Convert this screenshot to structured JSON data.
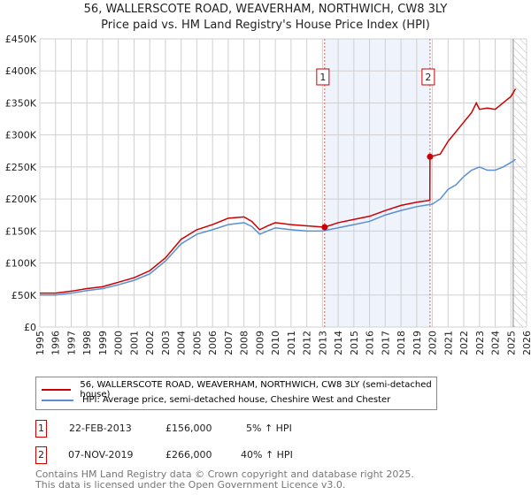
{
  "title": "56, WALLERSCOTE ROAD, WEAVERHAM, NORTHWICH, CW8 3LY",
  "subtitle": "Price paid vs. HM Land Registry's House Price Index (HPI)",
  "chart_data": {
    "type": "line",
    "title": "56, WALLERSCOTE ROAD, WEAVERHAM, NORTHWICH, CW8 3LY",
    "xlim": [
      1995,
      2026
    ],
    "ylim": [
      0,
      450000
    ],
    "yticks": [
      0,
      50000,
      100000,
      150000,
      200000,
      250000,
      300000,
      350000,
      400000,
      450000
    ],
    "ytick_labels": [
      "£0",
      "£50K",
      "£100K",
      "£150K",
      "£200K",
      "£250K",
      "£300K",
      "£350K",
      "£400K",
      "£450K"
    ],
    "xticks": [
      "1995",
      "1996",
      "1997",
      "1998",
      "1999",
      "2000",
      "2001",
      "2002",
      "2003",
      "2004",
      "2005",
      "2006",
      "2007",
      "2008",
      "2009",
      "2010",
      "2011",
      "2012",
      "2013",
      "2014",
      "2015",
      "2016",
      "2017",
      "2018",
      "2019",
      "2020",
      "2021",
      "2022",
      "2023",
      "2024",
      "2025",
      "2026"
    ],
    "grid": true,
    "series": [
      {
        "name": "56, WALLERSCOTE ROAD, WEAVERHAM, NORTHWICH, CW8 3LY (semi-detached house)",
        "color": "#cc0000",
        "x": [
          1995,
          1996,
          1997,
          1998,
          1999,
          2000,
          2001,
          2002,
          2003,
          2004,
          2005,
          2006,
          2007,
          2008,
          2008.5,
          2009,
          2009.5,
          2010,
          2011,
          2012,
          2013.14,
          2014,
          2015,
          2016,
          2017,
          2018,
          2019,
          2019.84,
          2019.85,
          2020.5,
          2021,
          2021.5,
          2022,
          2022.5,
          2022.8,
          2023,
          2023.5,
          2024,
          2024.5,
          2025,
          2025.3
        ],
        "y": [
          53000,
          53000,
          56000,
          60000,
          63000,
          70000,
          77000,
          88000,
          108000,
          137000,
          152000,
          160000,
          170000,
          172000,
          165000,
          152000,
          158000,
          163000,
          160000,
          158000,
          156000,
          163000,
          168000,
          173000,
          182000,
          190000,
          195000,
          198000,
          266000,
          270000,
          290000,
          305000,
          320000,
          335000,
          350000,
          340000,
          342000,
          340000,
          350000,
          360000,
          372000
        ]
      },
      {
        "name": "HPI: Average price, semi-detached house, Cheshire West and Chester",
        "color": "#5b8fd4",
        "x": [
          1995,
          1996,
          1997,
          1998,
          1999,
          2000,
          2001,
          2002,
          2003,
          2004,
          2005,
          2006,
          2007,
          2008,
          2008.5,
          2009,
          2009.5,
          2010,
          2011,
          2012,
          2013,
          2014,
          2015,
          2016,
          2017,
          2018,
          2019,
          2020,
          2020.5,
          2021,
          2021.5,
          2022,
          2022.5,
          2023,
          2023.5,
          2024,
          2024.5,
          2025,
          2025.3
        ],
        "y": [
          50000,
          50000,
          53000,
          57000,
          60000,
          66000,
          73000,
          83000,
          103000,
          130000,
          145000,
          152000,
          160000,
          163000,
          157000,
          145000,
          150000,
          155000,
          152000,
          150000,
          150000,
          155000,
          160000,
          165000,
          175000,
          182000,
          188000,
          192000,
          200000,
          215000,
          222000,
          235000,
          245000,
          250000,
          245000,
          245000,
          250000,
          257000,
          262000
        ]
      }
    ],
    "sales": [
      {
        "label": "1",
        "x": 2013.14,
        "price": 156000
      },
      {
        "label": "2",
        "x": 2019.85,
        "price": 266000
      }
    ],
    "shaded_range": [
      2013.14,
      2019.85
    ],
    "forecast_hatch_from": 2025.15
  },
  "legend": {
    "items": [
      "56, WALLERSCOTE ROAD, WEAVERHAM, NORTHWICH, CW8 3LY (semi-detached house)",
      "HPI: Average price, semi-detached house, Cheshire West and Chester"
    ]
  },
  "table": [
    {
      "num": "1",
      "date": "22-FEB-2013",
      "price": "£156,000",
      "change": "5% ↑ HPI"
    },
    {
      "num": "2",
      "date": "07-NOV-2019",
      "price": "£266,000",
      "change": "40% ↑ HPI"
    }
  ],
  "footer": [
    "Contains HM Land Registry data © Crown copyright and database right 2025.",
    "This data is licensed under the Open Government Licence v3.0."
  ]
}
